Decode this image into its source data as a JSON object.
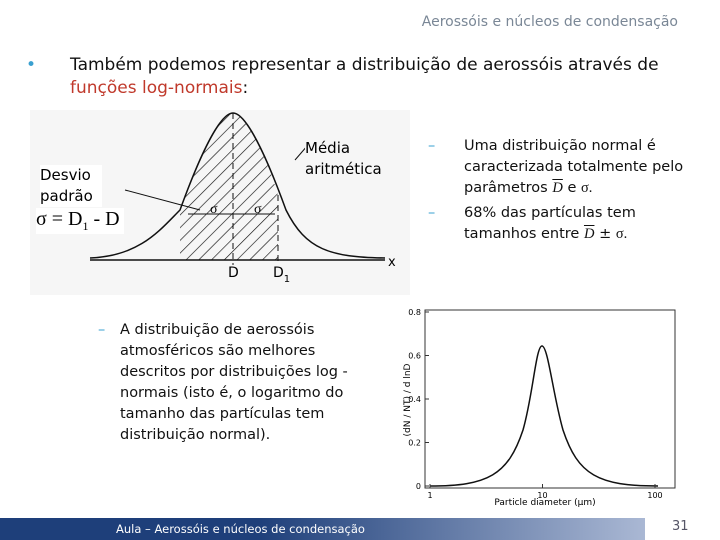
{
  "header": {
    "title": "Aerossóis e núcleos de condensação"
  },
  "bullet": {
    "text": "Também podemos representar a distribuição de aerossóis através de",
    "highlight": "funções log-normais",
    "end": ":"
  },
  "figure_left": {
    "std_label": "Desvio padrão",
    "formula": {
      "lhs": "σ = D",
      "sub": "1",
      "rhs": " - D"
    },
    "mean_label": "Média aritmética",
    "sigma_left": "σ",
    "sigma_right": "σ",
    "mean_tick": "D",
    "d1_tick": {
      "main": "D",
      "sub": "1"
    },
    "axis": "x"
  },
  "right_items": [
    {
      "text": "Uma distribuição normal é caracterizada totalmente pelo parâmetros",
      "symbol1": "D",
      "and": "e",
      "symbol2": "σ."
    },
    {
      "text": "68% das partículas tem tamanhos entre",
      "symbol1": "D",
      "pm": "±",
      "symbol2": "σ."
    }
  ],
  "lower_item": {
    "text": "A distribuição de aerossóis atmosféricos são melhores descritos por distribuições log -normais (isto é, o logaritmo do tamanho das partículas tem distribuição normal)."
  },
  "figure_right": {
    "ylabel": "(dN / NT) / d lnD",
    "xlabel": "Particle diameter (μm)",
    "yticks": [
      0.8,
      0.6,
      0.4,
      0.2,
      0
    ],
    "xticks": [
      1,
      10,
      100
    ]
  },
  "footer": {
    "text": "Aula – Aerossóis e núcleos de condensação",
    "page": "31"
  }
}
